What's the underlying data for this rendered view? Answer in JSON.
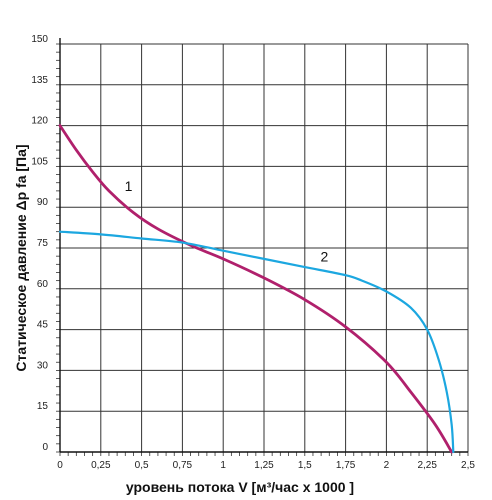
{
  "chart_data": {
    "type": "line",
    "xlabel": "уровень потока  V [м³/час x 1000 ]",
    "ylabel": "Статическое давление  Δp fa [Па]",
    "xlim": [
      0,
      2.5
    ],
    "ylim": [
      0,
      150
    ],
    "x_ticks": [
      "0",
      "0,25",
      "0,5",
      "0,75",
      "1",
      "1,25",
      "1,5",
      "1,75",
      "2",
      "2,25",
      "2,5"
    ],
    "y_ticks": [
      "0",
      "15",
      "30",
      "45",
      "60",
      "75",
      "90",
      "105",
      "120",
      "135",
      "150"
    ],
    "grid": true,
    "series": [
      {
        "name": "1",
        "color": "#b0206c",
        "points": [
          [
            0,
            120
          ],
          [
            0.1,
            111
          ],
          [
            0.2,
            103
          ],
          [
            0.3,
            96
          ],
          [
            0.45,
            88
          ],
          [
            0.6,
            82
          ],
          [
            0.8,
            76
          ],
          [
            1.0,
            71
          ],
          [
            1.25,
            64
          ],
          [
            1.5,
            56
          ],
          [
            1.75,
            46
          ],
          [
            2.0,
            33
          ],
          [
            2.15,
            22
          ],
          [
            2.3,
            10
          ],
          [
            2.4,
            0
          ]
        ]
      },
      {
        "name": "2",
        "color": "#1ca7e0",
        "points": [
          [
            0,
            81
          ],
          [
            0.25,
            80
          ],
          [
            0.5,
            78.5
          ],
          [
            0.75,
            77
          ],
          [
            1.0,
            74
          ],
          [
            1.25,
            71
          ],
          [
            1.5,
            68
          ],
          [
            1.75,
            65
          ],
          [
            1.85,
            63
          ],
          [
            2.0,
            59
          ],
          [
            2.15,
            53
          ],
          [
            2.25,
            45
          ],
          [
            2.32,
            34
          ],
          [
            2.37,
            22
          ],
          [
            2.4,
            10
          ],
          [
            2.41,
            0
          ]
        ]
      }
    ]
  }
}
